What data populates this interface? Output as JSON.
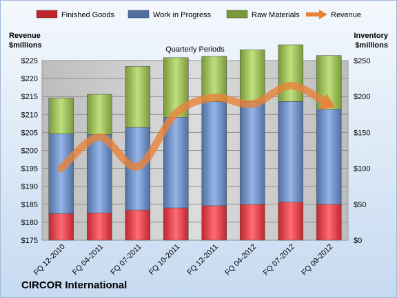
{
  "company": "CIRCOR International",
  "chart_data": {
    "type": "bar",
    "stacked": true,
    "title": "Quarterly Periods",
    "left_axis_label": [
      "Revenue",
      "$millions"
    ],
    "right_axis_label": [
      "Inventory",
      "$millions"
    ],
    "categories": [
      "FQ 12-2010",
      "FQ 04-2011",
      "FQ 07-2011",
      "FQ 10-2011",
      "FQ 12-2011",
      "FQ 04-2012",
      "FQ 07-2012",
      "FQ 09-2012"
    ],
    "series": [
      {
        "name": "Finished Goods",
        "axis": "right",
        "color": "#c0262d",
        "values": [
          37,
          38,
          42,
          45,
          48,
          50,
          53,
          50
        ]
      },
      {
        "name": "Work in Progress",
        "axis": "right",
        "color": "#4f6fa3",
        "values": [
          111,
          109,
          115,
          126,
          145,
          143,
          140,
          132
        ]
      },
      {
        "name": "Raw Materials",
        "axis": "right",
        "color": "#7a9a3a",
        "values": [
          50,
          56,
          85,
          83,
          63,
          72,
          79,
          75
        ]
      },
      {
        "name": "Revenue",
        "axis": "left",
        "type": "line",
        "color": "#e8823a",
        "values": [
          195.0,
          203.7,
          195.5,
          210.3,
          214.7,
          212.9,
          218.0,
          212.8
        ]
      }
    ],
    "left_ylim": [
      175,
      225
    ],
    "left_ticks": [
      "$175",
      "$180",
      "$185",
      "$190",
      "$195",
      "$200",
      "$205",
      "$210",
      "$215",
      "$220",
      "$225"
    ],
    "right_ylim": [
      0,
      250
    ],
    "right_ticks": [
      "$0",
      "$50",
      "$100",
      "$150",
      "$200",
      "$250"
    ],
    "legend": "top",
    "grid": true
  }
}
